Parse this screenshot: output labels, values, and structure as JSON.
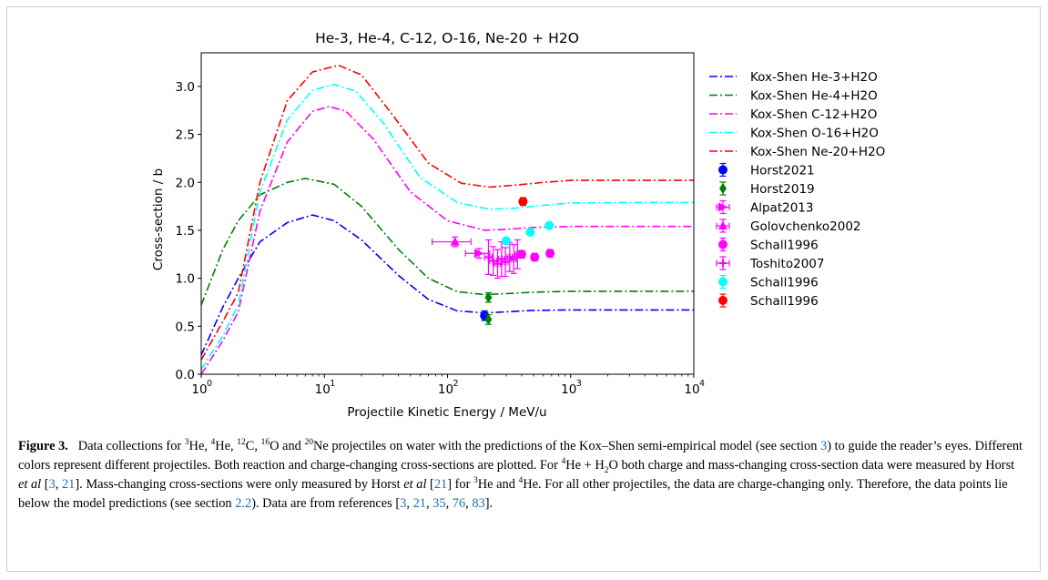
{
  "chart_data": {
    "type": "line",
    "title": "He-3, He-4, C-12, O-16, Ne-20 + H2O",
    "xlabel": "Projectile Kinetic Energy / MeV/u",
    "ylabel": "Cross-section / b",
    "xscale": "log",
    "xlim": [
      1,
      10000
    ],
    "ylim": [
      0,
      3.35
    ],
    "x_ticks": [
      {
        "base": "10",
        "exp": "0",
        "value": 1
      },
      {
        "base": "10",
        "exp": "1",
        "value": 10
      },
      {
        "base": "10",
        "exp": "2",
        "value": 100
      },
      {
        "base": "10",
        "exp": "3",
        "value": 1000
      },
      {
        "base": "10",
        "exp": "4",
        "value": 10000
      }
    ],
    "y_ticks": [
      "0.0",
      "0.5",
      "1.0",
      "1.5",
      "2.0",
      "2.5",
      "3.0"
    ],
    "legend_position": "outside-right",
    "model_series": [
      {
        "name": "Kox-Shen He-3+H2O",
        "color": "#0000ff",
        "x": [
          1,
          1.5,
          2,
          3,
          5,
          8,
          12,
          20,
          40,
          70,
          120,
          200,
          300,
          500,
          1000,
          3000,
          10000
        ],
        "y": [
          0.2,
          0.7,
          1.0,
          1.38,
          1.58,
          1.66,
          1.6,
          1.4,
          1.03,
          0.78,
          0.66,
          0.64,
          0.65,
          0.665,
          0.67,
          0.67,
          0.67
        ]
      },
      {
        "name": "Kox-Shen He-4+H2O",
        "color": "#008000",
        "x": [
          1,
          1.5,
          2,
          3,
          5,
          7,
          12,
          20,
          40,
          70,
          120,
          200,
          300,
          500,
          1000,
          3000,
          10000
        ],
        "y": [
          0.72,
          1.3,
          1.6,
          1.87,
          2.0,
          2.04,
          1.98,
          1.75,
          1.3,
          1.0,
          0.86,
          0.83,
          0.84,
          0.855,
          0.865,
          0.865,
          0.865
        ]
      },
      {
        "name": "Kox-Shen C-12+H2O",
        "color": "#ff00ff",
        "x": [
          1,
          1.5,
          2,
          3,
          5,
          8,
          11,
          15,
          25,
          50,
          100,
          200,
          300,
          500,
          1000,
          3000,
          10000
        ],
        "y": [
          0.0,
          0.35,
          0.65,
          1.7,
          2.42,
          2.74,
          2.79,
          2.74,
          2.45,
          1.9,
          1.6,
          1.5,
          1.51,
          1.53,
          1.54,
          1.54,
          1.54
        ]
      },
      {
        "name": "Kox-Shen O-16+H2O",
        "color": "#00ffff",
        "x": [
          1,
          1.5,
          2,
          3,
          5,
          8,
          12,
          18,
          30,
          60,
          120,
          220,
          350,
          600,
          1000,
          3000,
          10000
        ],
        "y": [
          0.05,
          0.4,
          0.72,
          1.9,
          2.65,
          2.96,
          3.02,
          2.95,
          2.62,
          2.05,
          1.79,
          1.72,
          1.73,
          1.76,
          1.785,
          1.79,
          1.79
        ]
      },
      {
        "name": "Kox-Shen Ne-20+H2O",
        "color": "#ff0000",
        "x": [
          1,
          1.5,
          2,
          3,
          5,
          8,
          13,
          20,
          35,
          70,
          130,
          220,
          350,
          600,
          1000,
          3000,
          10000
        ],
        "y": [
          0.15,
          0.55,
          0.85,
          2.0,
          2.85,
          3.15,
          3.22,
          3.12,
          2.72,
          2.2,
          1.99,
          1.95,
          1.97,
          2.0,
          2.02,
          2.02,
          2.02
        ]
      }
    ],
    "data_series": [
      {
        "name": "Horst2021",
        "color": "#0000ff",
        "marker": "circle",
        "points": [
          {
            "x": 200,
            "y": 0.61,
            "yerr": 0.05
          }
        ]
      },
      {
        "name": "Horst2019",
        "color": "#008000",
        "marker": "diamond",
        "points": [
          {
            "x": 215,
            "y": 0.57,
            "yerr": 0.05
          },
          {
            "x": 215,
            "y": 0.8,
            "yerr": 0.05
          }
        ]
      },
      {
        "name": "Alpat2013",
        "color": "#ff00ff",
        "marker": "triangle-right",
        "points": [
          {
            "x": 180,
            "y": 1.26,
            "yerr": 0.05,
            "xerr": 40
          }
        ]
      },
      {
        "name": "Golovchenko2002",
        "color": "#ff00ff",
        "marker": "triangle-up",
        "points": [
          {
            "x": 115,
            "y": 1.38,
            "yerr": 0.05,
            "xerr": 40
          }
        ]
      },
      {
        "name": "Schall1996",
        "color": "#ff00ff",
        "marker": "circle",
        "points": [
          {
            "x": 400,
            "y": 1.25,
            "yerr": 0.04
          },
          {
            "x": 510,
            "y": 1.22,
            "yerr": 0.04
          },
          {
            "x": 680,
            "y": 1.26,
            "yerr": 0.04
          }
        ]
      },
      {
        "name": "Toshito2007",
        "color": "#ff00ff",
        "marker": "plus",
        "points": [
          {
            "x": 215,
            "y": 1.22,
            "yerr": 0.18,
            "xerr": 15
          },
          {
            "x": 235,
            "y": 1.18,
            "yerr": 0.15,
            "xerr": 15
          },
          {
            "x": 255,
            "y": 1.15,
            "yerr": 0.15,
            "xerr": 15
          },
          {
            "x": 275,
            "y": 1.2,
            "yerr": 0.18,
            "xerr": 15
          },
          {
            "x": 295,
            "y": 1.17,
            "yerr": 0.15,
            "xerr": 15
          },
          {
            "x": 320,
            "y": 1.22,
            "yerr": 0.15,
            "xerr": 15
          },
          {
            "x": 345,
            "y": 1.2,
            "yerr": 0.15,
            "xerr": 15
          },
          {
            "x": 370,
            "y": 1.25,
            "yerr": 0.15,
            "xerr": 15
          }
        ]
      },
      {
        "name": "Schall1996",
        "color": "#00ffff",
        "marker": "circle",
        "points": [
          {
            "x": 300,
            "y": 1.39,
            "yerr": 0.03
          },
          {
            "x": 470,
            "y": 1.48,
            "yerr": 0.03
          },
          {
            "x": 670,
            "y": 1.55,
            "yerr": 0.03
          }
        ]
      },
      {
        "name": "Schall1996",
        "color": "#ff0000",
        "marker": "circle",
        "points": [
          {
            "x": 410,
            "y": 1.8,
            "yerr": 0.04
          }
        ]
      }
    ]
  },
  "caption": {
    "label": "Figure 3.",
    "t1": "Data collections for ",
    "he3_sup": "3",
    "t2": "He, ",
    "he4_sup": "4",
    "t3": "He, ",
    "c12_sup": "12",
    "t4": "C, ",
    "o16_sup": "16",
    "t5": "O and ",
    "ne20_sup": "20",
    "t6": "Ne projectiles on water with the predictions of the Kox–Shen semi-empirical model (see section ",
    "ref_section3": "3",
    "t7": ") to guide the reader’s eyes. Different colors represent different projectiles. Both reaction and charge-changing cross-sections are plotted. For ",
    "he4b_sup": "4",
    "t8": "He + H",
    "h2o_sub": "2",
    "t9": "O both charge and mass-changing cross-section data were measured by Horst ",
    "etal1": "et al",
    "t10": " [",
    "ref3a": "3",
    "t11": ", ",
    "ref21a": "21",
    "t12": "]. Mass-changing cross-sections were only measured by Horst ",
    "etal2": "et al",
    "t13": " [",
    "ref21b": "21",
    "t14": "] for ",
    "he3b_sup": "3",
    "t15": "He and ",
    "he4c_sup": "4",
    "t16": "He. For all other projectiles, the data are charge-changing only. Therefore, the data points lie below the model predictions (see section ",
    "ref_section22": "2.2",
    "t17": "). Data are from references [",
    "r1": "3",
    "c1": ", ",
    "r2": "21",
    "c2": ", ",
    "r3": "35",
    "c3": ", ",
    "r4": "76",
    "c4": ", ",
    "r5": "83",
    "t18": "]."
  }
}
